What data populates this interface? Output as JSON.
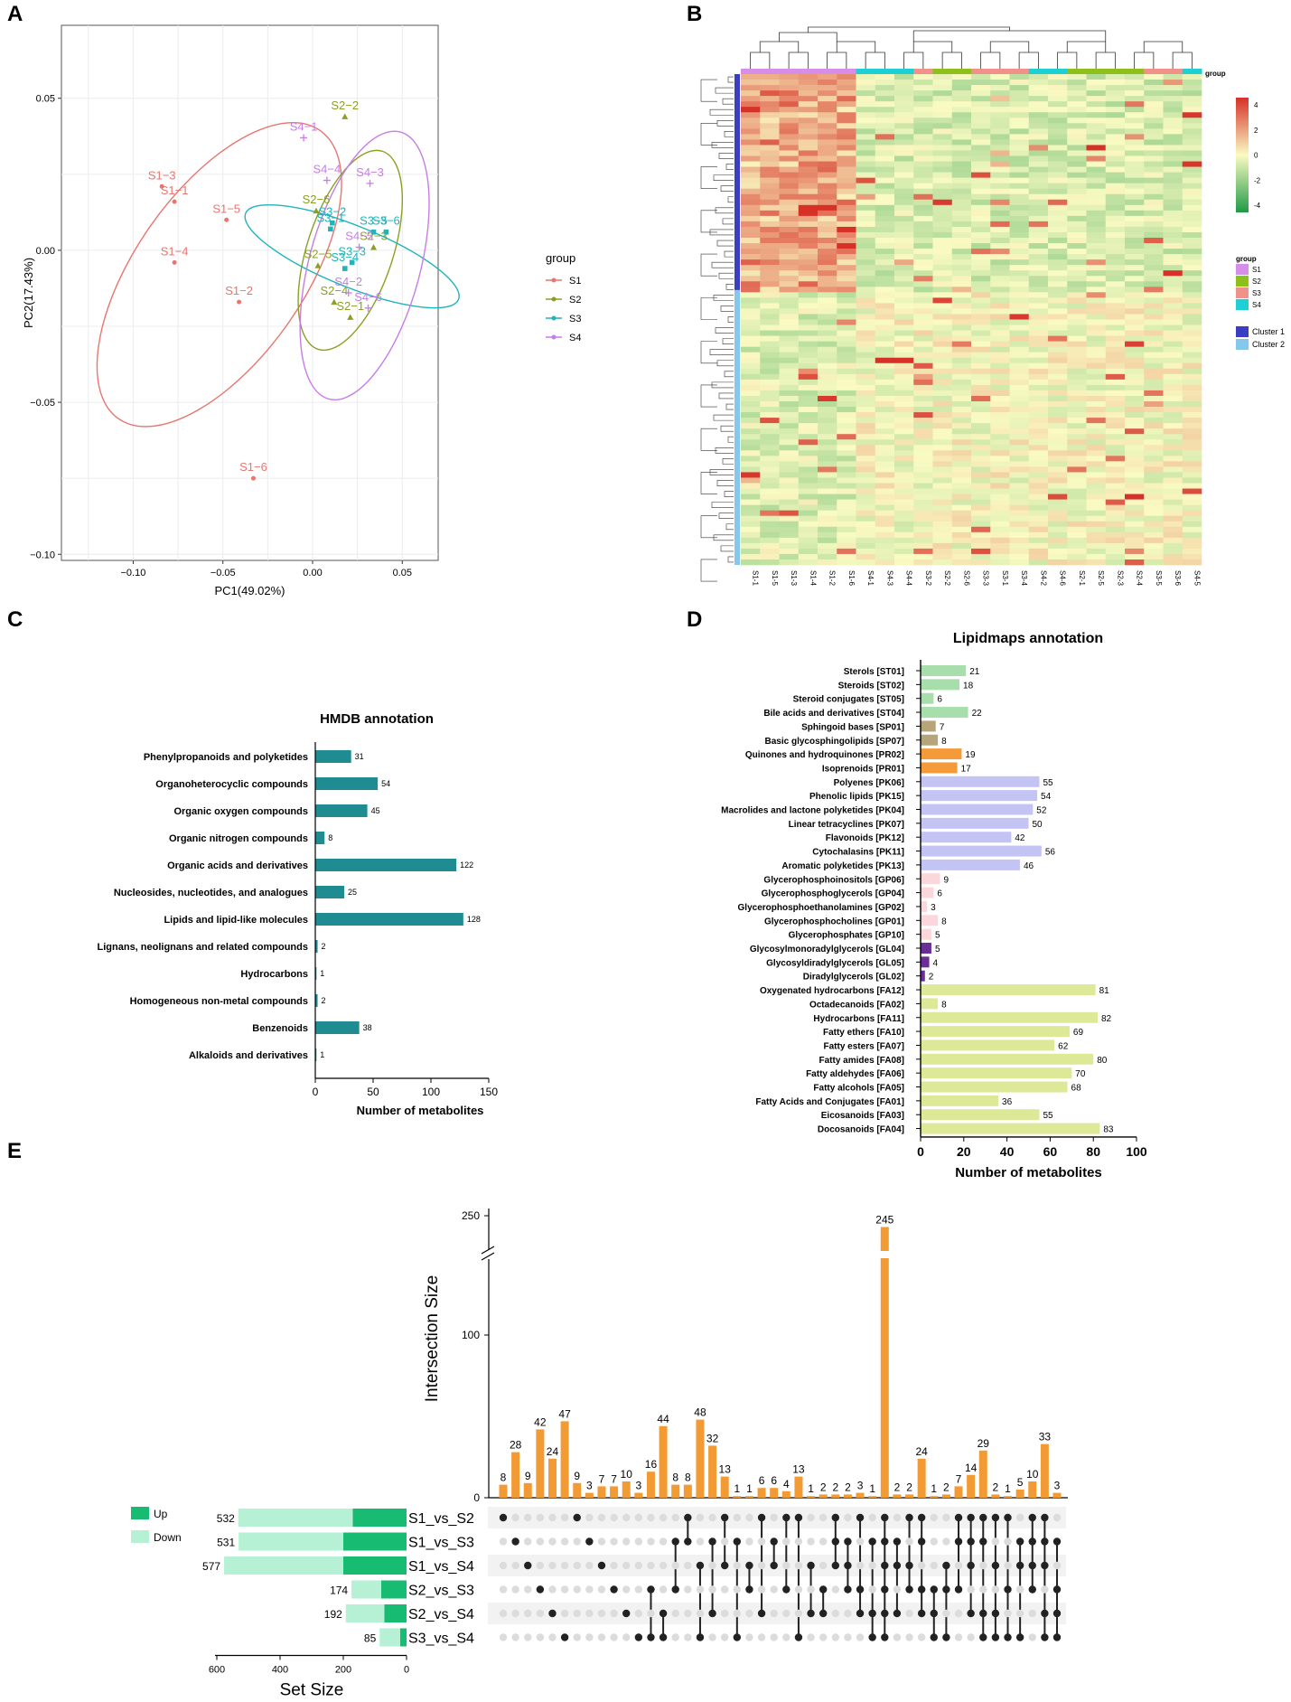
{
  "panel_labels": {
    "A": "A",
    "B": "B",
    "C": "C",
    "D": "D",
    "E": "E"
  },
  "chart_data": [
    {
      "id": "A",
      "type": "scatter",
      "title": "",
      "xlabel": "PC1(49.02%)",
      "ylabel": "PC2(17.43%)",
      "xlim": [
        -0.14,
        0.07
      ],
      "ylim": [
        -0.102,
        0.074
      ],
      "xticks": [
        -0.1,
        -0.05,
        0.0,
        0.05
      ],
      "xtick_labels": [
        "−0.10",
        "−0.05",
        "0.00",
        "0.05"
      ],
      "yticks": [
        -0.1,
        -0.05,
        0.0,
        0.05
      ],
      "ytick_labels": [
        "−0.10",
        "−0.05",
        "0.00",
        "0.05"
      ],
      "grid": true,
      "legend": {
        "title": "group",
        "position": "right",
        "entries": [
          "S1",
          "S2",
          "S3",
          "S4"
        ]
      },
      "colors": {
        "S1": "#e8756f",
        "S2": "#8aa022",
        "S3": "#1fb4b9",
        "S4": "#c77de6"
      },
      "series": [
        {
          "name": "S1",
          "marker": "dot",
          "points": [
            {
              "label": "S1−1",
              "x": -0.077,
              "y": 0.016
            },
            {
              "label": "S1−2",
              "x": -0.041,
              "y": -0.017
            },
            {
              "label": "S1−3",
              "x": -0.084,
              "y": 0.021
            },
            {
              "label": "S1−4",
              "x": -0.077,
              "y": -0.004
            },
            {
              "label": "S1−5",
              "x": -0.048,
              "y": 0.01
            },
            {
              "label": "S1−6",
              "x": -0.033,
              "y": -0.075
            }
          ],
          "ellipse": {
            "cx": -0.052,
            "cy": -0.008,
            "rx": 0.098,
            "ry": 0.047,
            "angle_deg": 55
          }
        },
        {
          "name": "S2",
          "marker": "triangle",
          "points": [
            {
              "label": "S2−1",
              "x": 0.021,
              "y": -0.022
            },
            {
              "label": "S2−2",
              "x": 0.018,
              "y": 0.044
            },
            {
              "label": "S2−3",
              "x": 0.034,
              "y": 0.001
            },
            {
              "label": "S2−4",
              "x": 0.012,
              "y": -0.017
            },
            {
              "label": "S2−5",
              "x": 0.003,
              "y": -0.005
            },
            {
              "label": "S2−6",
              "x": 0.002,
              "y": 0.013
            }
          ],
          "ellipse": {
            "cx": 0.021,
            "cy": 0.0,
            "rx": 0.058,
            "ry": 0.024,
            "angle_deg": 72
          }
        },
        {
          "name": "S3",
          "marker": "square",
          "points": [
            {
              "label": "S3−1",
              "x": 0.01,
              "y": 0.007
            },
            {
              "label": "S3−2",
              "x": 0.011,
              "y": 0.009
            },
            {
              "label": "S3−3",
              "x": 0.022,
              "y": -0.004
            },
            {
              "label": "S3−4",
              "x": 0.018,
              "y": -0.006
            },
            {
              "label": "S3−5",
              "x": 0.034,
              "y": 0.006
            },
            {
              "label": "S3−6",
              "x": 0.041,
              "y": 0.006
            }
          ],
          "ellipse": {
            "cx": 0.022,
            "cy": -0.002,
            "rx": 0.064,
            "ry": 0.017,
            "angle_deg": -22
          }
        },
        {
          "name": "S4",
          "marker": "cross",
          "points": [
            {
              "label": "S4−1",
              "x": -0.005,
              "y": 0.037
            },
            {
              "label": "S4−2",
              "x": 0.02,
              "y": -0.014
            },
            {
              "label": "S4−3",
              "x": 0.032,
              "y": 0.022
            },
            {
              "label": "S4−4",
              "x": 0.008,
              "y": 0.023
            },
            {
              "label": "S4−5",
              "x": 0.026,
              "y": 0.001
            },
            {
              "label": "S4−6",
              "x": 0.031,
              "y": -0.019
            }
          ],
          "ellipse": {
            "cx": 0.029,
            "cy": -0.005,
            "rx": 0.077,
            "ry": 0.031,
            "angle_deg": 75
          }
        }
      ]
    },
    {
      "id": "B",
      "type": "heatmap",
      "title": "",
      "columns": [
        "S1-1",
        "S1-5",
        "S1-3",
        "S1-4",
        "S1-2",
        "S1-6",
        "S4-1",
        "S4-3",
        "S4-4",
        "S3-2",
        "S2-2",
        "S2-6",
        "S3-3",
        "S3-1",
        "S3-4",
        "S4-2",
        "S4-6",
        "S2-1",
        "S2-5",
        "S2-3",
        "S2-4",
        "S3-5",
        "S3-6",
        "S4-5"
      ],
      "column_groups": [
        "S1",
        "S1",
        "S1",
        "S1",
        "S1",
        "S1",
        "S4",
        "S4",
        "S4",
        "S3",
        "S2",
        "S2",
        "S3",
        "S3",
        "S3",
        "S4",
        "S4",
        "S2",
        "S2",
        "S2",
        "S2",
        "S3",
        "S3",
        "S4"
      ],
      "group_colors": {
        "S1": "#d78ee8",
        "S2": "#8dc01a",
        "S3": "#f0928a",
        "S4": "#1dd0d3"
      },
      "group_bar_label": "group",
      "color_scale": {
        "min": -4,
        "max": 4,
        "ticks": [
          4,
          2,
          0,
          -2,
          -4
        ],
        "colors": [
          "#1f9a45",
          "#fafbc3",
          "#d73027"
        ]
      },
      "legend_title": "group",
      "legend_groups": [
        "S1",
        "S2",
        "S3",
        "S4"
      ],
      "row_clusters": [
        {
          "name": "Cluster 1",
          "color": "#3a3fc2",
          "fraction": 0.44
        },
        {
          "name": "Cluster 2",
          "color": "#86c7ec",
          "fraction": 0.56
        }
      ]
    },
    {
      "id": "C",
      "type": "bar",
      "orientation": "horizontal",
      "title": "HMDB annotation",
      "xlabel": "Number of metabolites",
      "ylabel": "",
      "xlim": [
        0,
        150
      ],
      "xticks": [
        0,
        50,
        100,
        150
      ],
      "color": "#1f8c92",
      "categories": [
        "Phenylpropanoids and polyketides",
        "Organoheterocyclic compounds",
        "Organic oxygen compounds",
        "Organic nitrogen compounds",
        "Organic acids and derivatives",
        "Nucleosides, nucleotides, and analogues",
        "Lipids and lipid-like molecules",
        "Lignans, neolignans and related compounds",
        "Hydrocarbons",
        "Homogeneous non-metal compounds",
        "Benzenoids",
        "Alkaloids and derivatives"
      ],
      "values": [
        31,
        54,
        45,
        8,
        122,
        25,
        128,
        2,
        1,
        2,
        38,
        1
      ]
    },
    {
      "id": "D",
      "type": "bar",
      "orientation": "horizontal",
      "title": "Lipidmaps annotation",
      "xlabel": "Number of metabolites",
      "ylabel": "",
      "xlim": [
        0,
        100
      ],
      "xticks": [
        0,
        20,
        40,
        60,
        80,
        100
      ],
      "categories": [
        "Sterols [ST01]",
        "Steroids [ST02]",
        "Steroid conjugates [ST05]",
        "Bile acids and derivatives [ST04]",
        "Sphingoid bases [SP01]",
        "Basic glycosphingolipids [SP07]",
        "Quinones and hydroquinones [PR02]",
        "Isoprenoids [PR01]",
        "Polyenes [PK06]",
        "Phenolic lipids [PK15]",
        "Macrolides and lactone polyketides [PK04]",
        "Linear tetracyclines [PK07]",
        "Flavonoids [PK12]",
        "Cytochalasins [PK11]",
        "Aromatic polyketides [PK13]",
        "Glycerophosphoinositols [GP06]",
        "Glycerophosphoglycerols [GP04]",
        "Glycerophosphoethanolamines [GP02]",
        "Glycerophosphocholines [GP01]",
        "Glycerophosphates [GP10]",
        "Glycosylmonoradylglycerols [GL04]",
        "Glycosyldiradylglycerols [GL05]",
        "Diradylglycerols [GL02]",
        "Oxygenated hydrocarbons [FA12]",
        "Octadecanoids [FA02]",
        "Hydrocarbons [FA11]",
        "Fatty ethers [FA10]",
        "Fatty esters [FA07]",
        "Fatty amides [FA08]",
        "Fatty aldehydes [FA06]",
        "Fatty alcohols [FA05]",
        "Fatty Acids and Conjugates [FA01]",
        "Eicosanoids [FA03]",
        "Docosanoids [FA04]"
      ],
      "values": [
        21,
        18,
        6,
        22,
        7,
        8,
        19,
        17,
        55,
        54,
        52,
        50,
        42,
        56,
        46,
        9,
        6,
        3,
        8,
        5,
        5,
        4,
        2,
        81,
        8,
        82,
        69,
        62,
        80,
        70,
        68,
        36,
        55,
        83
      ],
      "bar_colors": [
        "#a8deac",
        "#a8deac",
        "#a8deac",
        "#a8deac",
        "#b5a578",
        "#b5a578",
        "#f59a38",
        "#f59a38",
        "#c4c4f4",
        "#c4c4f4",
        "#c4c4f4",
        "#c4c4f4",
        "#c4c4f4",
        "#c4c4f4",
        "#c4c4f4",
        "#fbd7dc",
        "#fbd7dc",
        "#fbd7dc",
        "#fbd7dc",
        "#fbd7dc",
        "#6a2f96",
        "#6a2f96",
        "#6a2f96",
        "#dde996",
        "#dde996",
        "#dde996",
        "#dde996",
        "#dde996",
        "#dde996",
        "#dde996",
        "#dde996",
        "#dde996",
        "#dde996",
        "#dde996"
      ]
    },
    {
      "id": "E",
      "type": "bar",
      "subtype": "upset",
      "ylabel": "Intersection Size",
      "yticks": [
        0,
        100,
        250
      ],
      "axis_break": true,
      "bar_color": "#f29a33",
      "intersection_values": [
        8,
        28,
        9,
        42,
        24,
        47,
        9,
        3,
        7,
        7,
        10,
        3,
        16,
        44,
        8,
        8,
        48,
        32,
        13,
        1,
        1,
        6,
        6,
        4,
        13,
        1,
        2,
        2,
        2,
        3,
        1,
        245,
        2,
        2,
        24,
        1,
        2,
        7,
        14,
        29,
        2,
        1,
        5,
        10,
        33,
        3
      ],
      "sets": [
        "S1_vs_S2",
        "S1_vs_S3",
        "S1_vs_S4",
        "S2_vs_S3",
        "S2_vs_S4",
        "S3_vs_S4"
      ],
      "set_sizes": [
        532,
        531,
        577,
        174,
        192,
        85
      ],
      "set_up": [
        170,
        200,
        200,
        80,
        70,
        20
      ],
      "set_down": [
        362,
        331,
        377,
        94,
        122,
        65
      ],
      "set_size_label": "Set Size",
      "set_size_ticks": [
        600,
        400,
        200,
        0
      ],
      "legend": [
        "Up",
        "Down"
      ],
      "up_color": "#18bb72",
      "down_color": "#b6f1d6",
      "memberships": [
        [
          0
        ],
        [
          1
        ],
        [
          2
        ],
        [
          3
        ],
        [
          4
        ],
        [
          5
        ],
        [
          0
        ],
        [
          1
        ],
        [
          2
        ],
        [
          3
        ],
        [
          4
        ],
        [
          5
        ],
        [
          3,
          5
        ],
        [
          4,
          5
        ],
        [
          1,
          3
        ],
        [
          0,
          1
        ],
        [
          2,
          5
        ],
        [
          1,
          4
        ],
        [
          0,
          2
        ],
        [
          1,
          5
        ],
        [
          2,
          3
        ],
        [
          0,
          4
        ],
        [
          1,
          2
        ],
        [
          0,
          3
        ],
        [
          0,
          5
        ],
        [
          2,
          4
        ],
        [
          3,
          4
        ],
        [
          0,
          1,
          2
        ],
        [
          1,
          2,
          3
        ],
        [
          0,
          3,
          4
        ],
        [
          1,
          4,
          5
        ],
        [
          0,
          1,
          2,
          3,
          4,
          5
        ],
        [
          1,
          2,
          4
        ],
        [
          0,
          2,
          3
        ],
        [
          0,
          1,
          3,
          4
        ],
        [
          3,
          4,
          5
        ],
        [
          2,
          3,
          5
        ],
        [
          0,
          1,
          3
        ],
        [
          0,
          1,
          2,
          4
        ],
        [
          0,
          1,
          4,
          5
        ],
        [
          0,
          2,
          4,
          5
        ],
        [
          0,
          3,
          5
        ],
        [
          1,
          2,
          5
        ],
        [
          0,
          1,
          2,
          3
        ],
        [
          0,
          1,
          2,
          4,
          5
        ],
        [
          1,
          3,
          4,
          5
        ]
      ]
    }
  ]
}
